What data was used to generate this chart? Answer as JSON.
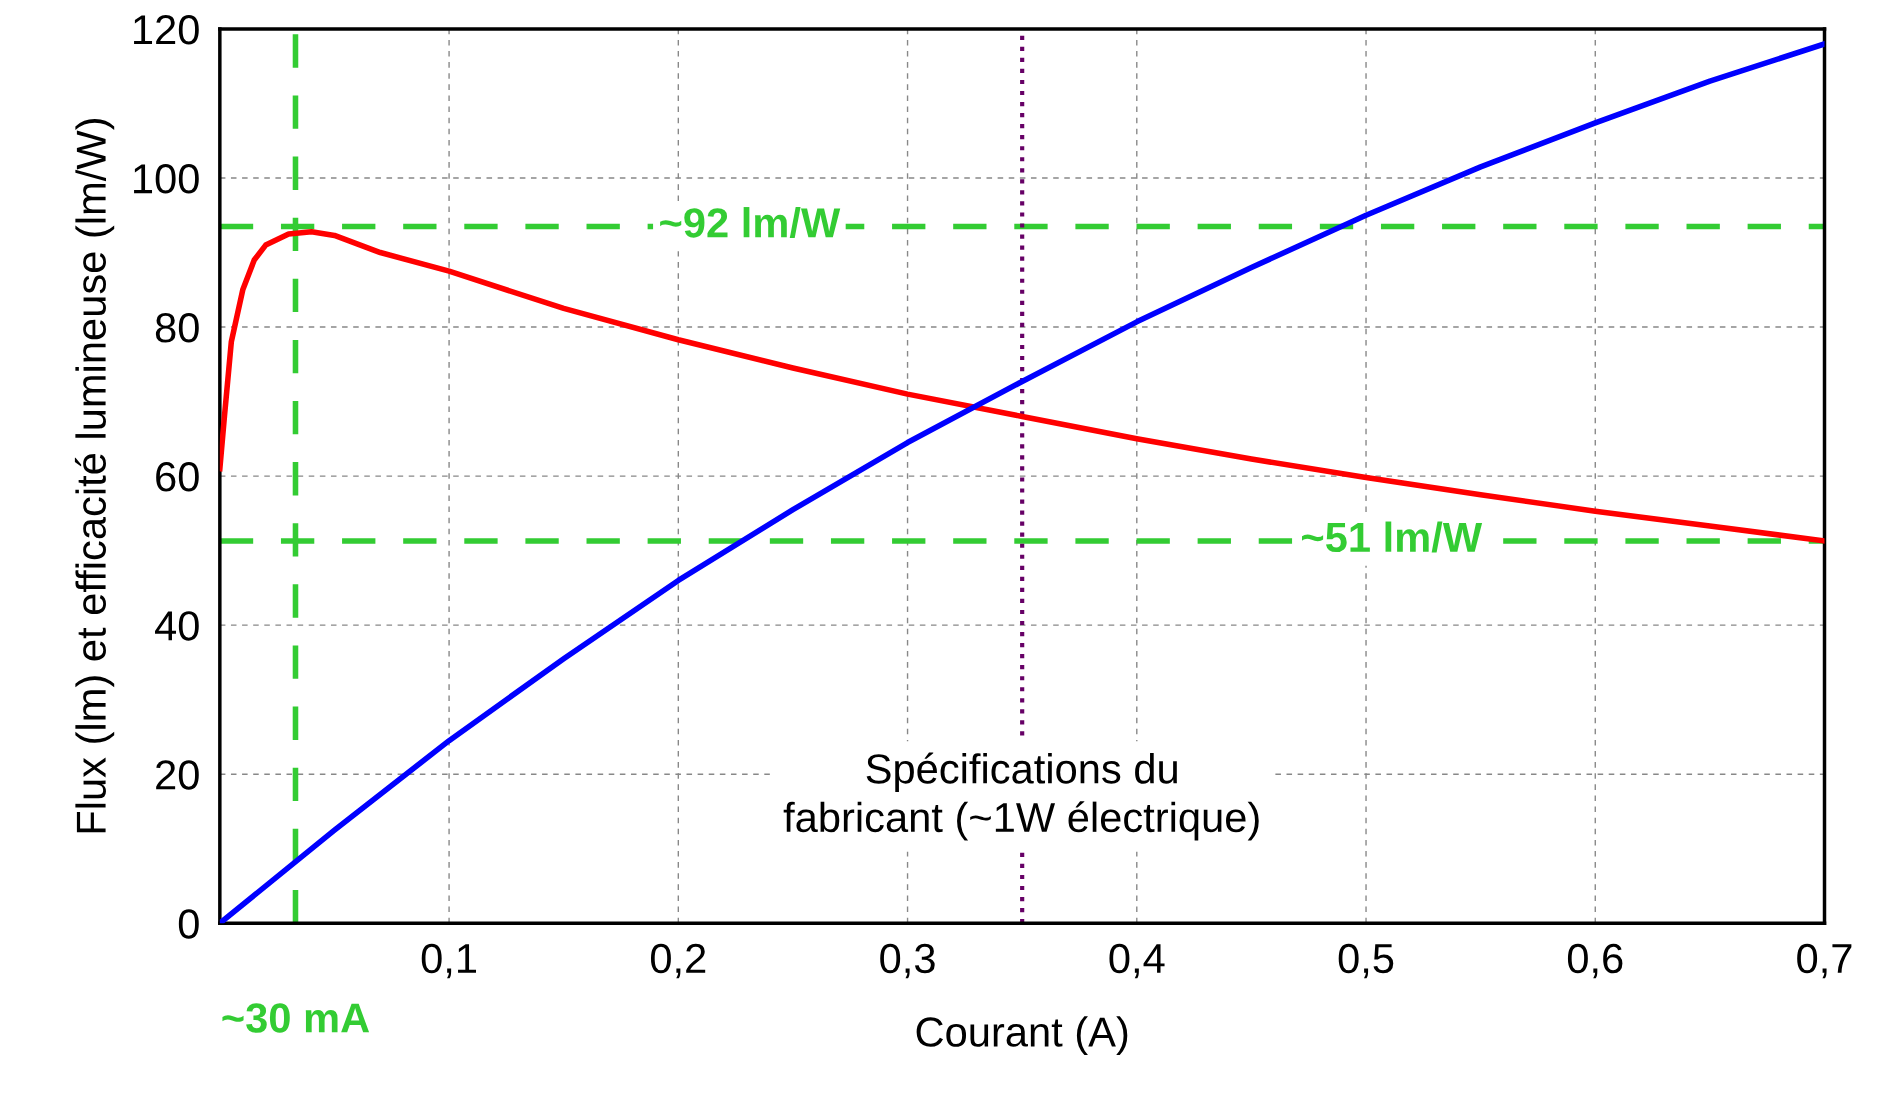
{
  "chart_data": {
    "type": "line",
    "xlabel": "Courant (A)",
    "ylabel": "Flux (lm) et efficacité lumineuse (lm/W)",
    "xlim": [
      0,
      0.7
    ],
    "ylim": [
      0,
      120
    ],
    "xticks": [
      {
        "value": 0,
        "label": null
      },
      {
        "value": 0.1,
        "label": "0,1"
      },
      {
        "value": 0.2,
        "label": "0,2"
      },
      {
        "value": 0.3,
        "label": "0,3"
      },
      {
        "value": 0.4,
        "label": "0,4"
      },
      {
        "value": 0.5,
        "label": "0,5"
      },
      {
        "value": 0.6,
        "label": "0,6"
      },
      {
        "value": 0.7,
        "label": "0,7"
      }
    ],
    "yticks": [
      0,
      20,
      40,
      60,
      80,
      100,
      120
    ],
    "grid": true,
    "legend": false,
    "marker": "none",
    "line_style": "solid",
    "series": [
      {
        "color": "#ff0000",
        "x": [
          0,
          0.002,
          0.005,
          0.01,
          0.015,
          0.02,
          0.03,
          0.04,
          0.05,
          0.07,
          0.1,
          0.15,
          0.2,
          0.25,
          0.3,
          0.35,
          0.4,
          0.45,
          0.5,
          0.55,
          0.6,
          0.65,
          0.7
        ],
        "values": [
          61,
          68,
          78,
          85,
          89,
          91,
          92.5,
          92.8,
          92.3,
          90,
          87.5,
          82.5,
          78.3,
          74.5,
          71,
          68,
          65,
          62.3,
          59.8,
          57.5,
          55.3,
          53.3,
          51.3
        ]
      },
      {
        "color": "#0000ff",
        "x": [
          0,
          0.05,
          0.1,
          0.15,
          0.2,
          0.25,
          0.3,
          0.35,
          0.4,
          0.45,
          0.5,
          0.55,
          0.6,
          0.65,
          0.7
        ],
        "values": [
          0,
          12.5,
          24.5,
          35.5,
          46,
          55.5,
          64.5,
          72.7,
          80.7,
          88,
          95,
          101.5,
          107.4,
          113,
          118
        ]
      }
    ],
    "ref_lines": [
      {
        "axis": "y",
        "value": 93.5,
        "label": "~92 lm/W",
        "color": "#33cc33",
        "line_style": "dashed"
      },
      {
        "axis": "y",
        "value": 51.3,
        "label": "~51 lm/W",
        "color": "#33cc33",
        "line_style": "dashed"
      },
      {
        "axis": "x",
        "value": 0.033,
        "label": "~30 mA",
        "color": "#33cc33",
        "line_style": "dashed"
      },
      {
        "axis": "x",
        "value": 0.35,
        "color": "#660066",
        "line_style": "dotted"
      }
    ],
    "annotations": [
      {
        "text": "Spécifications du\nfabricant (~1W électrique)",
        "x": 0.35,
        "y": 17
      }
    ]
  }
}
